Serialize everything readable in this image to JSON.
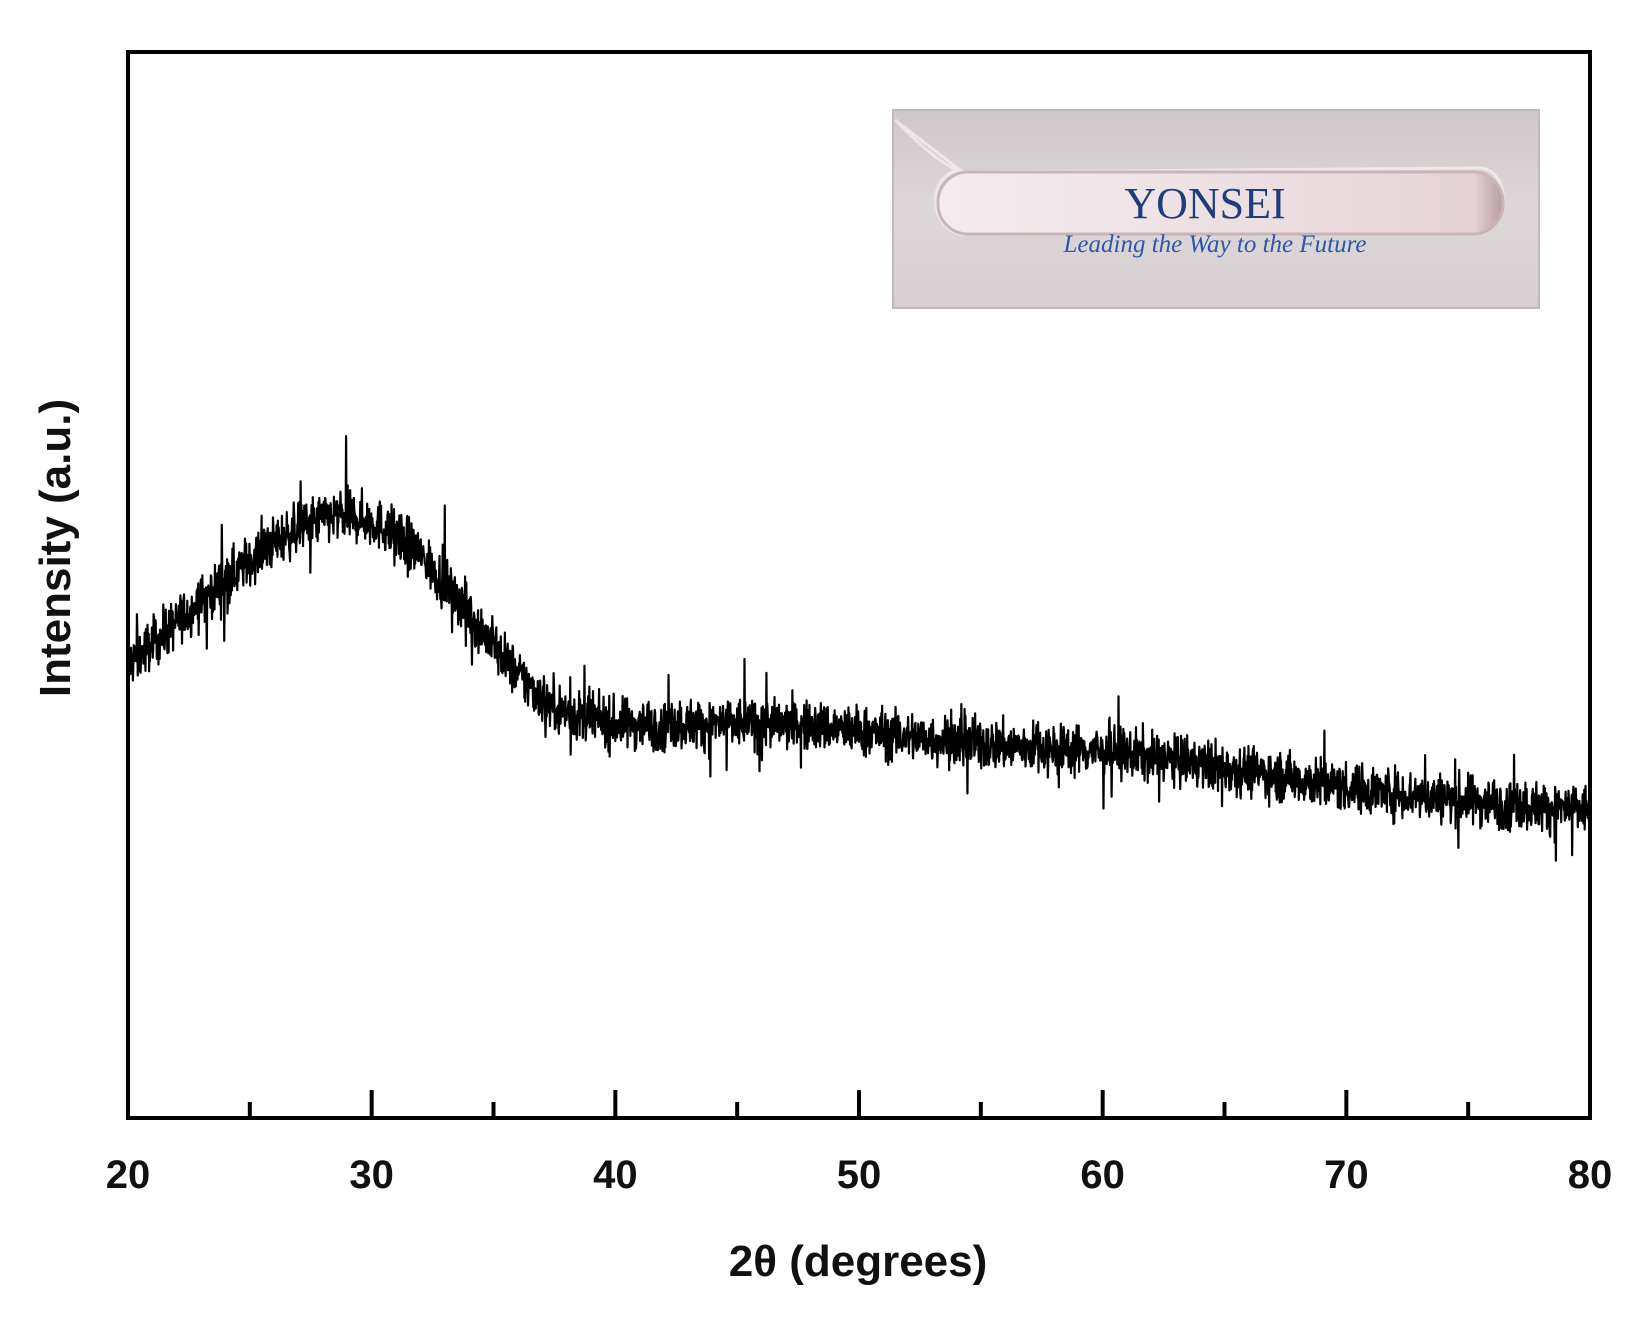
{
  "chart_data": {
    "type": "line",
    "title": "",
    "xlabel": "2θ (degrees)",
    "ylabel": "Intensity (a.u.)",
    "xlim": [
      20,
      80
    ],
    "ylim": [
      0,
      100
    ],
    "x_ticks": [
      "20",
      "30",
      "40",
      "50",
      "60",
      "70",
      "80"
    ],
    "x_tick_values": [
      20,
      30,
      40,
      50,
      60,
      70,
      80
    ],
    "x_minor_tick_values": [
      25,
      35,
      45,
      55,
      65,
      75
    ],
    "y_ticks_labeled": false,
    "grid": false,
    "legend": "none",
    "line_color": "#000000",
    "series": [
      {
        "name": "",
        "noisy": true,
        "x": [
          20,
          21,
          22,
          23,
          24,
          25,
          26,
          27,
          28,
          29,
          30,
          31,
          32,
          33,
          34,
          35,
          36,
          37,
          38,
          39,
          40,
          42,
          44,
          46,
          48,
          50,
          52,
          54,
          56,
          58,
          60,
          62,
          64,
          66,
          68,
          70,
          72,
          74,
          76,
          78,
          80
        ],
        "y": [
          42.5,
          44.5,
          46.5,
          48.5,
          50.5,
          52.3,
          54.0,
          55.3,
          56.3,
          56.5,
          56.0,
          54.8,
          52.8,
          50.2,
          47.3,
          44.3,
          41.6,
          39.4,
          38.0,
          37.3,
          37.0,
          36.9,
          37.0,
          37.0,
          36.8,
          36.3,
          35.8,
          35.3,
          34.9,
          34.7,
          34.5,
          33.9,
          33.2,
          32.6,
          31.8,
          31.0,
          30.5,
          30.0,
          29.6,
          29.2,
          28.9
        ]
      }
    ]
  },
  "inset": {
    "logo_text": "YONSEI",
    "slogan": "Leading the Way to the Future",
    "icon": "glass-substrate-photo",
    "bg_color": "#dcd5d6",
    "glass_color": "#efe4e6",
    "logo_color": "#1f3d78",
    "slogan_color": "#2f56a8"
  }
}
